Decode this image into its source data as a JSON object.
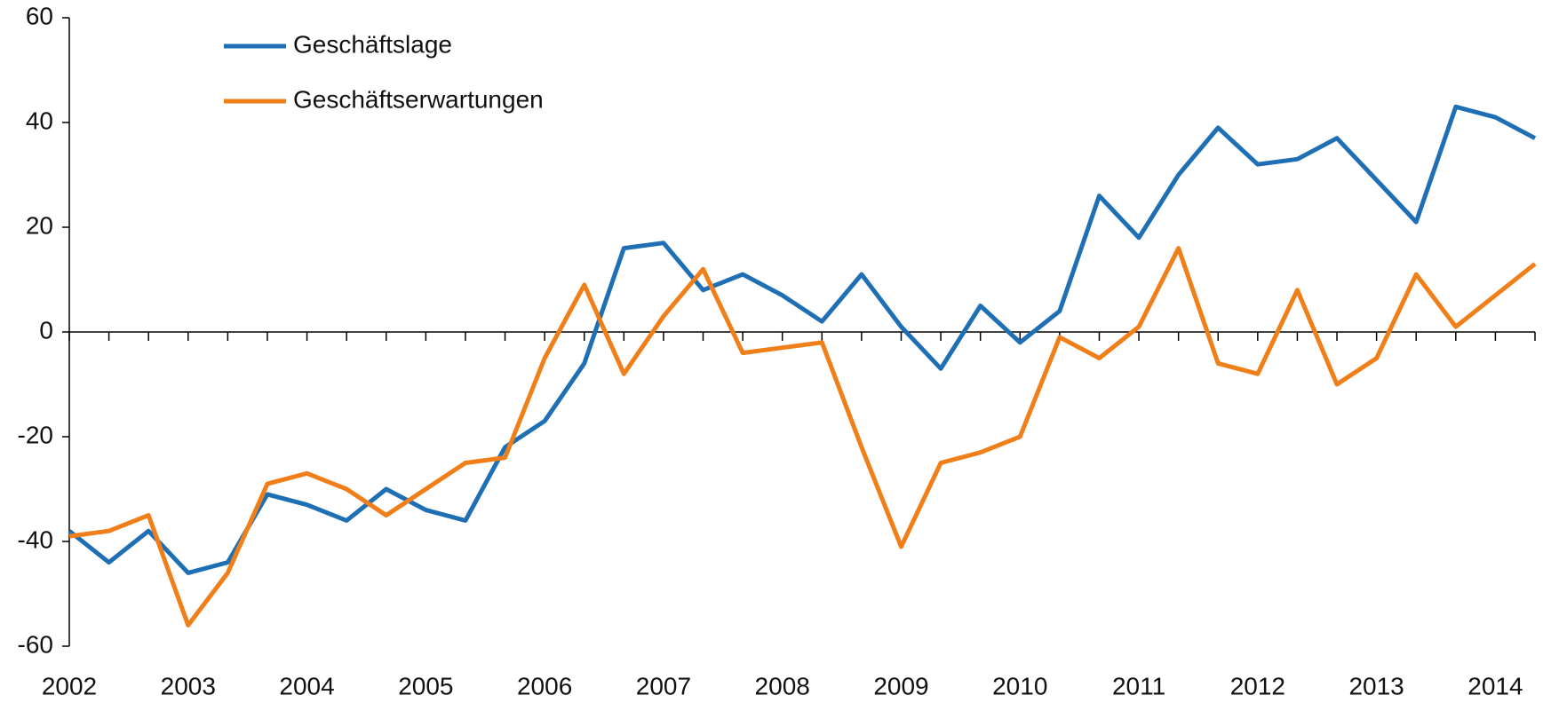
{
  "chart_data": {
    "type": "line",
    "categories": [
      "2002",
      null,
      null,
      "2003",
      null,
      null,
      "2004",
      null,
      null,
      "2005",
      null,
      null,
      "2006",
      null,
      null,
      "2007",
      null,
      null,
      "2008",
      null,
      null,
      "2009",
      null,
      null,
      "2010",
      null,
      null,
      "2011",
      null,
      null,
      "2012",
      null,
      null,
      "2013",
      null,
      null,
      "2014",
      null
    ],
    "series": [
      {
        "name": "Geschäftslage",
        "color": "#1f6fb4",
        "values": [
          -38,
          -44,
          -38,
          -46,
          -44,
          -31,
          -33,
          -36,
          -30,
          -34,
          -36,
          -22,
          -17,
          -6,
          16,
          17,
          8,
          11,
          7,
          2,
          11,
          1,
          -7,
          5,
          -2,
          4,
          26,
          18,
          30,
          39,
          32,
          33,
          37,
          29,
          21,
          43,
          41,
          37
        ]
      },
      {
        "name": "Geschäftserwartungen",
        "color": "#f07f1a",
        "values": [
          -39,
          -38,
          -35,
          -56,
          -46,
          -29,
          -27,
          -30,
          -35,
          -30,
          -25,
          -24,
          -5,
          9,
          -8,
          3,
          12,
          -4,
          -3,
          -2,
          -22,
          -41,
          -25,
          -23,
          -20,
          -1,
          -5,
          1,
          16,
          -6,
          -8,
          8,
          -10,
          -5,
          11,
          1,
          7,
          13
        ]
      }
    ],
    "ylim": [
      -60,
      60
    ],
    "yticks": [
      -60,
      -40,
      -20,
      0,
      20,
      40,
      60
    ],
    "legend": "upper left"
  }
}
